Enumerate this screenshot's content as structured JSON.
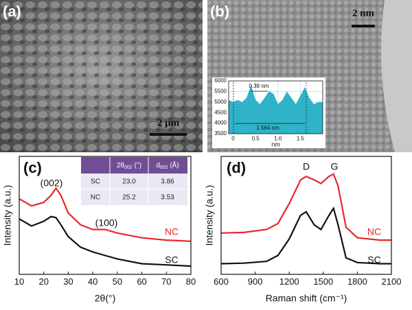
{
  "panels": [
    {
      "label": "(a)",
      "scale_bar": "2 μm"
    },
    {
      "label": "(b)",
      "scale_bar": "2 nm"
    },
    {
      "label": "(c)"
    },
    {
      "label": "(d)"
    }
  ],
  "table": {
    "header": [
      {
        "main": "2θ",
        "sub": "002",
        "unit": " (°)"
      },
      {
        "main": "d",
        "sub": "002",
        "unit": " (Å)"
      }
    ],
    "rows": [
      [
        "SC",
        "23.0",
        "3.86"
      ],
      [
        "NC",
        "25.2",
        "3.53"
      ]
    ]
  },
  "chart_data": [
    {
      "type": "area",
      "xlabel": "nm",
      "annotations": [
        "0.39 nm",
        "1.564 nm"
      ],
      "color": "#2fb3c8",
      "grid": true,
      "x": [
        -0.1,
        0,
        0.1,
        0.2,
        0.3,
        0.4,
        0.5,
        0.6,
        0.7,
        0.8,
        0.9,
        1,
        1.1,
        1.2,
        1.3,
        1.4,
        1.5,
        1.6,
        1.7,
        1.8,
        1.9,
        2
      ],
      "values": [
        5100,
        5000,
        5100,
        5000,
        5200,
        5800,
        5100,
        4900,
        5200,
        5500,
        5400,
        4900,
        5100,
        5500,
        5200,
        4900,
        5300,
        5700,
        5200,
        4900,
        5000,
        5000
      ],
      "xlim": [
        -0.1,
        2
      ],
      "ylim": [
        3500,
        6000
      ],
      "xticks": [
        0,
        0.5,
        {
          "value": 1,
          "label": "1.0"
        },
        1.5
      ],
      "yticks": [
        3500,
        4000,
        4500,
        5000,
        5500,
        6000
      ]
    },
    {
      "type": "line",
      "xlabel": "2θ(°)",
      "ylabel": "Intensity (a.u.)",
      "annotations": [
        "(002)",
        "(100)"
      ],
      "x": [
        10,
        15,
        20,
        23,
        25,
        27,
        30,
        35,
        40,
        45,
        50,
        60,
        70,
        80
      ],
      "series": [
        {
          "name": "NC",
          "color": "#e8262a",
          "values": [
            64,
            58,
            61,
            67,
            73,
            67,
            52,
            42,
            38,
            38,
            35,
            31,
            29,
            28
          ]
        },
        {
          "name": "SC",
          "color": "#111111",
          "values": [
            47,
            41,
            45,
            49,
            48,
            42,
            32,
            23,
            19,
            16,
            13,
            9,
            8,
            7
          ]
        }
      ],
      "xlim": [
        10,
        80
      ],
      "ylim": [
        0,
        100
      ],
      "xticks": [
        10,
        20,
        30,
        40,
        50,
        60,
        70,
        80
      ]
    },
    {
      "type": "line",
      "xlabel": "Raman shift (cm⁻¹)",
      "ylabel": "Intensity (a.u.)",
      "annotations": [
        "D",
        "G"
      ],
      "x": [
        600,
        800,
        1000,
        1100,
        1200,
        1300,
        1350,
        1420,
        1480,
        1550,
        1590,
        1630,
        1700,
        1800,
        2000,
        2100
      ],
      "series": [
        {
          "name": "NC",
          "color": "#e8262a",
          "values": [
            35,
            35.5,
            38,
            43,
            60,
            80,
            83,
            80,
            77,
            83,
            85,
            75,
            40,
            31,
            29,
            29
          ]
        },
        {
          "name": "SC",
          "color": "#111111",
          "values": [
            9,
            9.5,
            11,
            16,
            30,
            50,
            53,
            42,
            38,
            50,
            56,
            42,
            14,
            10,
            9,
            9
          ]
        }
      ],
      "xlim": [
        600,
        2100
      ],
      "ylim": [
        0,
        100
      ],
      "xticks": [
        600,
        900,
        1200,
        1500,
        1800,
        2100
      ]
    }
  ]
}
